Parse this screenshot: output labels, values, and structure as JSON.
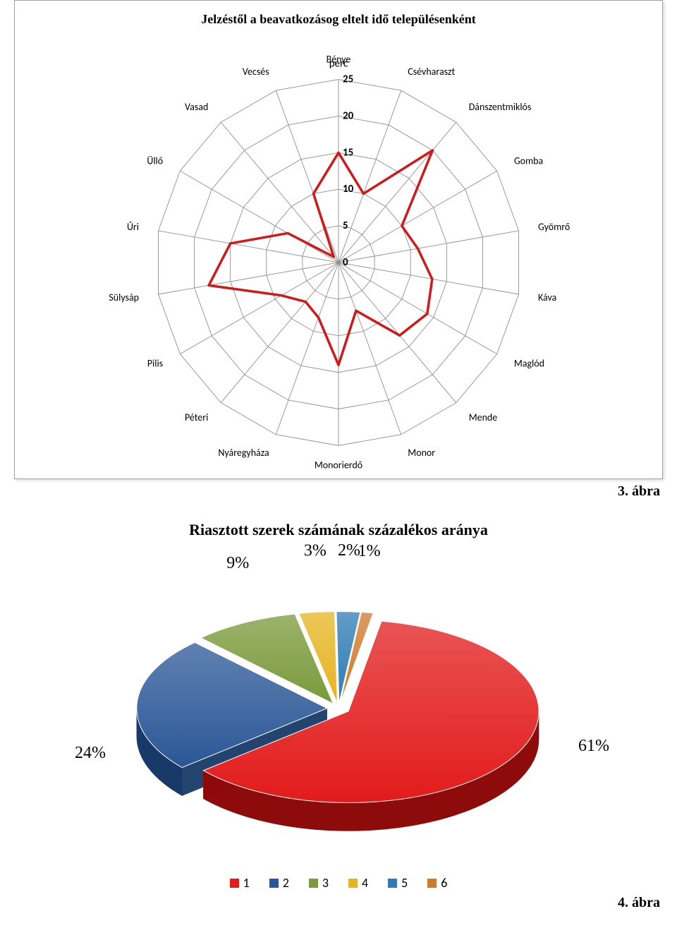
{
  "radar": {
    "title": "Jelzéstől a beavatkozásog eltelt idő településenként",
    "unit_label": "perc",
    "title_fontsize": 18,
    "label_font": "Calibri, Arial, sans-serif",
    "label_fontsize": 14,
    "max": 25,
    "ring_step": 5,
    "ring_labels": [
      "0",
      "5",
      "10",
      "15",
      "20",
      "25"
    ],
    "categories": [
      "Bénye",
      "Csévharaszt",
      "Dánszentmiklós",
      "Gomba",
      "Gyömrő",
      "Káva",
      "Maglód",
      "Mende",
      "Monor",
      "Monorierdő",
      "Nyáregyháza",
      "Péteri",
      "Pilis",
      "Sülysáp",
      "Úri",
      "Üllő",
      "Vasad",
      "Vecsés"
    ],
    "values": [
      15,
      10,
      20,
      10,
      11,
      13,
      14,
      13,
      7,
      14,
      8,
      7,
      9,
      18,
      15,
      8,
      1,
      10
    ],
    "line_color": "#d11919",
    "line_width": 3.5,
    "grid_color": "#8f8f8f",
    "grid_width": 0.9,
    "background_color": "#ffffff",
    "caption": "3. ábra"
  },
  "pie": {
    "title": "Riasztott szerek számának százalékos aránya",
    "title_fontsize": 22,
    "series": [
      {
        "label": "1",
        "value": 61,
        "display": "61%",
        "color": "#e21b1b",
        "side": "#8e0b0b"
      },
      {
        "label": "2",
        "value": 24,
        "display": "24%",
        "color": "#2b5797",
        "side": "#183a68"
      },
      {
        "label": "3",
        "value": 9,
        "display": "9%",
        "color": "#7a9a3b",
        "side": "#546d27"
      },
      {
        "label": "4",
        "value": 3,
        "display": "3%",
        "color": "#e6b422",
        "side": "#a07b14"
      },
      {
        "label": "5",
        "value": 2,
        "display": "2%",
        "color": "#2f7bb5",
        "side": "#1e5581"
      },
      {
        "label": "6",
        "value": 1,
        "display": "1%",
        "color": "#d07a2c",
        "side": "#8a4f1b"
      }
    ],
    "label_fontsize": 24,
    "legend_font": "Calibri, Arial, sans-serif",
    "explode": 0.06,
    "depth": 40,
    "tilt": 0.48,
    "caption": "4. ábra"
  }
}
